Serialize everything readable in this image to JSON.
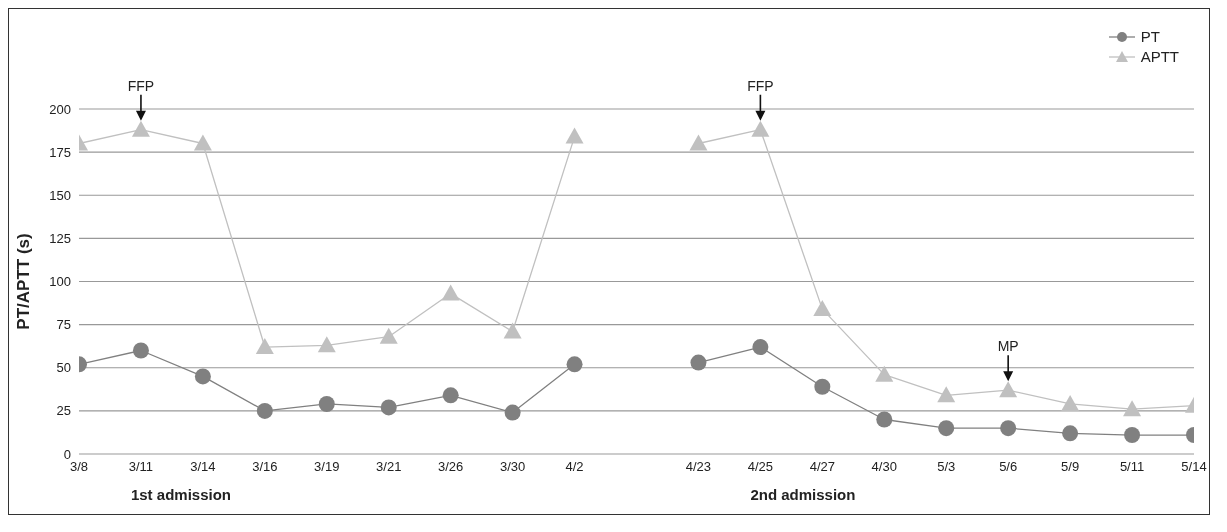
{
  "chart_data": {
    "type": "line",
    "ylabel": "PT/APTT (s)",
    "categories": [
      "3/8",
      "3/11",
      "3/14",
      "3/16",
      "3/19",
      "3/21",
      "3/26",
      "3/30",
      "4/2",
      null,
      "4/23",
      "4/25",
      "4/27",
      "4/30",
      "5/3",
      "5/6",
      "5/9",
      "5/11",
      "5/14"
    ],
    "series": [
      {
        "name": "PT",
        "color": "#808080",
        "marker": "circle",
        "values": [
          52,
          60,
          45,
          25,
          29,
          27,
          34,
          24,
          52,
          null,
          53,
          62,
          39,
          20,
          15,
          15,
          12,
          11,
          11
        ]
      },
      {
        "name": "APTT",
        "color": "#c0c0c0",
        "marker": "triangle",
        "values": [
          180,
          188,
          180,
          62,
          63,
          68,
          93,
          71,
          184,
          null,
          180,
          188,
          84,
          46,
          34,
          37,
          29,
          26,
          28
        ]
      }
    ],
    "ylim": [
      0,
      200
    ],
    "yticks": [
      0,
      25,
      50,
      75,
      100,
      125,
      150,
      175,
      200
    ],
    "grid": "y",
    "legend": "top right",
    "annotations": [
      {
        "text": "FFP",
        "x": "3/11",
        "y": 188
      },
      {
        "text": "FFP",
        "x": "4/25",
        "y": 188
      },
      {
        "text": "MP",
        "x": "5/6",
        "y": 37
      },
      "1st admission",
      "2nd admission"
    ]
  }
}
